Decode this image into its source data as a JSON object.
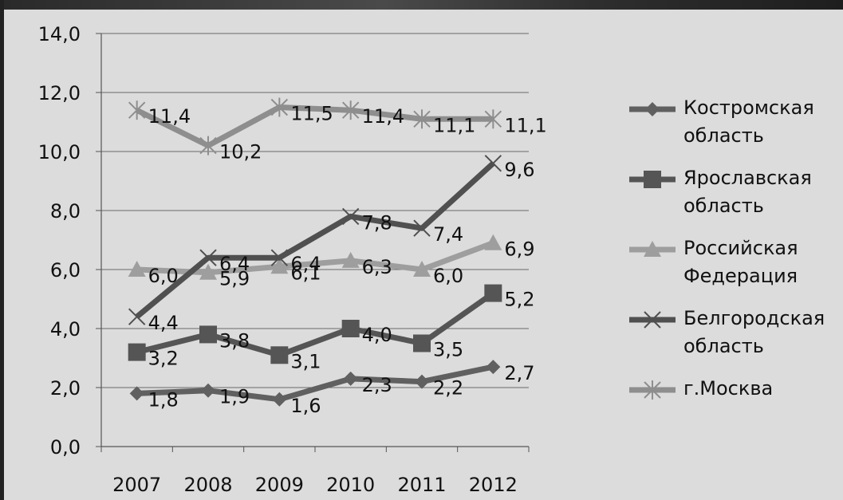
{
  "chart_data": {
    "type": "line",
    "categories": [
      "2007",
      "2008",
      "2009",
      "2010",
      "2011",
      "2012"
    ],
    "ylim": [
      0,
      14
    ],
    "yticks": [
      "0,0",
      "2,0",
      "4,0",
      "6,0",
      "8,0",
      "10,0",
      "12,0",
      "14,0"
    ],
    "grid": "horizontal",
    "legend_position": "right",
    "series": [
      {
        "name": "Костромская область",
        "marker": "diamond",
        "color": "#606060",
        "values": [
          1.8,
          1.9,
          1.6,
          2.3,
          2.2,
          2.7
        ],
        "labels": [
          "1,8",
          "1,9",
          "1,6",
          "2,3",
          "2,2",
          "2,7"
        ]
      },
      {
        "name": "Ярославская область",
        "marker": "square",
        "color": "#555555",
        "values": [
          3.2,
          3.8,
          3.1,
          4.0,
          3.5,
          5.2
        ],
        "labels": [
          "3,2",
          "3,8",
          "3,1",
          "4,0",
          "3,5",
          "5,2"
        ]
      },
      {
        "name": "Российская Федерация",
        "marker": "triangle",
        "color": "#9e9e9e",
        "values": [
          6.0,
          5.9,
          6.1,
          6.3,
          6.0,
          6.9
        ],
        "labels": [
          "6,0",
          "5,9",
          "6,1",
          "6,3",
          "6,0",
          "6,9"
        ]
      },
      {
        "name": "Белгородская область",
        "marker": "x",
        "color": "#505050",
        "values": [
          4.4,
          6.4,
          6.4,
          7.8,
          7.4,
          9.6
        ],
        "labels": [
          "4,4",
          "6,4",
          "6,4",
          "7,8",
          "7,4",
          "9,6"
        ]
      },
      {
        "name": "г.Москва",
        "marker": "star",
        "color": "#8e8e8e",
        "values": [
          11.4,
          10.2,
          11.5,
          11.4,
          11.1,
          11.1
        ],
        "labels": [
          "11,4",
          "10,2",
          "11,5",
          "11,4",
          "11,1",
          "11,1"
        ]
      }
    ]
  }
}
